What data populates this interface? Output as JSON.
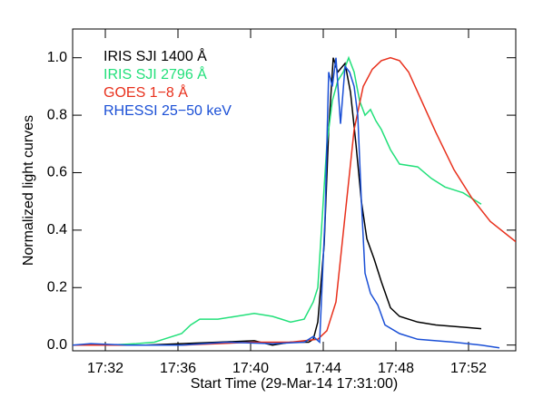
{
  "chart_data": {
    "type": "line",
    "xlabel": "Start Time (29-Mar-14 17:31:00)",
    "ylabel": "Normalized light curves",
    "xlim": [
      -0.8,
      23.6
    ],
    "xticks": [
      {
        "value": 1,
        "label": "17:32"
      },
      {
        "value": 5,
        "label": "17:36"
      },
      {
        "value": 9,
        "label": "17:40"
      },
      {
        "value": 13,
        "label": "17:44"
      },
      {
        "value": 17,
        "label": "17:48"
      },
      {
        "value": 21,
        "label": "17:52"
      }
    ],
    "ylim": [
      -0.02,
      1.1
    ],
    "yticks": [
      {
        "value": 0,
        "label": "0.0"
      },
      0.2,
      0.4,
      0.6,
      0.8,
      {
        "value": 1,
        "label": "1.0"
      }
    ],
    "legend": "upper left",
    "series": [
      {
        "name": "IRIS SJI 1400 Å",
        "color": "#000000",
        "x": [
          3.2,
          5.2,
          7.2,
          9.2,
          10.2,
          11.2,
          12.2,
          12.45,
          12.7,
          13.05,
          13.3,
          13.55,
          13.8,
          14.2,
          14.5,
          14.8,
          15.1,
          15.4,
          15.8,
          16.2,
          16.7,
          17.2,
          18.2,
          19.2,
          20.2,
          21.7
        ],
        "values": [
          0.0,
          0.005,
          0.01,
          0.015,
          0.0,
          0.01,
          0.01,
          0.02,
          0.08,
          0.35,
          0.75,
          1.0,
          0.95,
          0.98,
          0.88,
          0.7,
          0.5,
          0.37,
          0.3,
          0.22,
          0.13,
          0.1,
          0.08,
          0.07,
          0.065,
          0.057
        ]
      },
      {
        "name": "IRIS SJI 2796 Å",
        "color": "#22e07a",
        "x": [
          -0.8,
          1.2,
          2.7,
          3.7,
          4.2,
          5.2,
          5.7,
          6.2,
          7.2,
          8.2,
          9.2,
          10.2,
          10.7,
          11.2,
          11.95,
          12.45,
          12.7,
          12.95,
          13.2,
          13.5,
          13.8,
          14.1,
          14.4,
          14.7,
          15.0,
          15.3,
          15.6,
          15.9,
          16.2,
          16.7,
          17.2,
          18.2,
          18.95,
          19.7,
          20.7,
          21.7
        ],
        "values": [
          0.0,
          0.0,
          0.005,
          0.01,
          0.02,
          0.04,
          0.07,
          0.09,
          0.09,
          0.1,
          0.11,
          0.1,
          0.09,
          0.08,
          0.09,
          0.15,
          0.2,
          0.45,
          0.7,
          0.85,
          0.92,
          0.95,
          1.0,
          0.95,
          0.85,
          0.8,
          0.82,
          0.78,
          0.75,
          0.68,
          0.63,
          0.62,
          0.58,
          0.55,
          0.53,
          0.49
        ]
      },
      {
        "name": "GOES 1−8 Å",
        "color": "#e8301c",
        "x": [
          -0.8,
          5.2,
          7.2,
          9.2,
          11.2,
          12.7,
          13.2,
          13.7,
          14.2,
          14.7,
          15.2,
          15.7,
          16.2,
          16.7,
          17.2,
          17.7,
          18.2,
          19.2,
          20.2,
          21.2,
          22.2,
          23.6
        ],
        "values": [
          0.0,
          0.0,
          0.005,
          0.01,
          0.01,
          0.02,
          0.05,
          0.15,
          0.45,
          0.75,
          0.9,
          0.96,
          0.99,
          1.0,
          0.99,
          0.95,
          0.88,
          0.74,
          0.61,
          0.51,
          0.43,
          0.36
        ]
      },
      {
        "name": "RHESSI 25−50 keV",
        "color": "#1a4fd6",
        "x": [
          -0.8,
          0.2,
          2.2,
          5.2,
          7.7,
          10.2,
          11.95,
          12.45,
          12.8,
          13.1,
          13.3,
          13.5,
          13.7,
          13.95,
          14.2,
          14.45,
          14.7,
          14.9,
          15.1,
          15.3,
          15.6,
          16.0,
          16.4,
          17.2,
          18.2,
          20.2,
          21.7,
          22.7
        ],
        "values": [
          0.0,
          0.005,
          0.0,
          0.0,
          0.01,
          0.005,
          0.01,
          0.03,
          0.01,
          0.45,
          0.95,
          0.9,
          1.0,
          0.77,
          0.97,
          0.95,
          0.9,
          0.8,
          0.5,
          0.25,
          0.18,
          0.14,
          0.07,
          0.04,
          0.02,
          0.01,
          0.0,
          -0.01
        ]
      }
    ]
  }
}
